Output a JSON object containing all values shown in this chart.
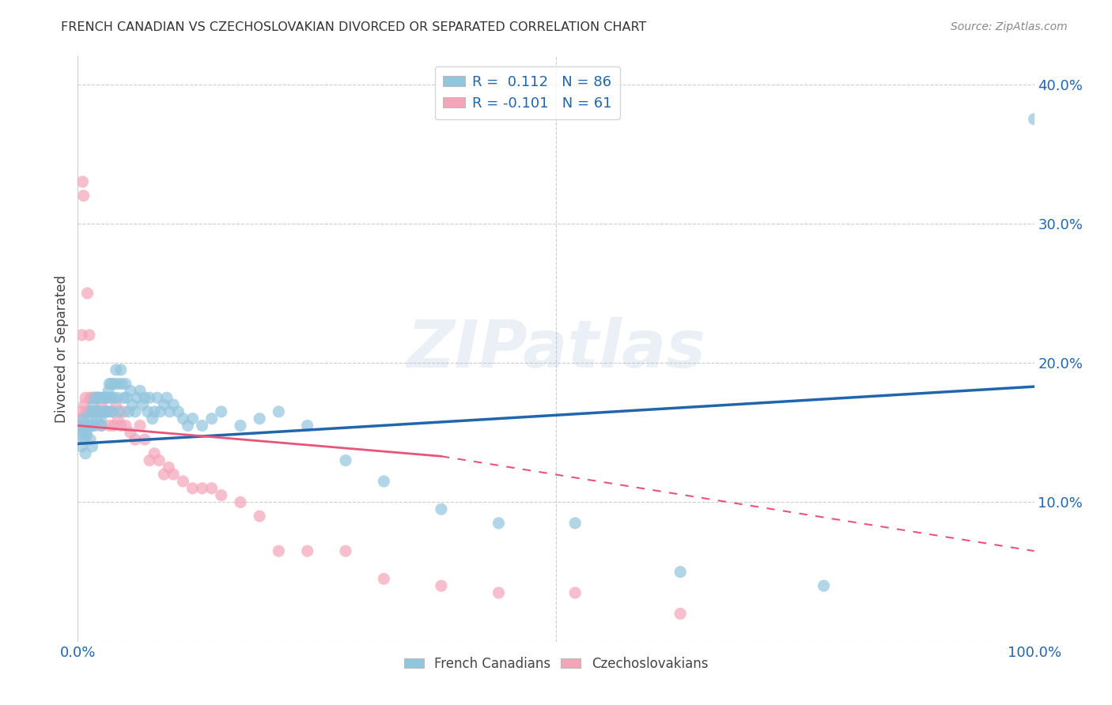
{
  "title": "FRENCH CANADIAN VS CZECHOSLOVAKIAN DIVORCED OR SEPARATED CORRELATION CHART",
  "source": "Source: ZipAtlas.com",
  "ylabel": "Divorced or Separated",
  "xmin": 0.0,
  "xmax": 1.0,
  "ymin": 0.0,
  "ymax": 0.42,
  "xticks": [
    0.0,
    0.25,
    0.5,
    0.75,
    1.0
  ],
  "xticklabels": [
    "0.0%",
    "",
    "",
    "",
    "100.0%"
  ],
  "yticks": [
    0.0,
    0.1,
    0.2,
    0.3,
    0.4
  ],
  "yticklabels": [
    "",
    "10.0%",
    "20.0%",
    "30.0%",
    "40.0%"
  ],
  "legend_entry1": "R =  0.112   N = 86",
  "legend_entry2": "R = -0.101   N = 61",
  "color_blue": "#92c5de",
  "color_pink": "#f4a5b8",
  "line_color_blue": "#2166ac",
  "line_color_pink": "#e8547a",
  "background_color": "#ffffff",
  "grid_color": "#cccccc",
  "watermark": "ZIPatlas",
  "french_x": [
    0.002,
    0.003,
    0.004,
    0.005,
    0.006,
    0.007,
    0.008,
    0.008,
    0.009,
    0.01,
    0.011,
    0.012,
    0.013,
    0.014,
    0.015,
    0.015,
    0.016,
    0.017,
    0.018,
    0.018,
    0.019,
    0.02,
    0.021,
    0.022,
    0.023,
    0.024,
    0.025,
    0.026,
    0.027,
    0.028,
    0.029,
    0.03,
    0.031,
    0.032,
    0.033,
    0.034,
    0.035,
    0.036,
    0.037,
    0.038,
    0.04,
    0.041,
    0.042,
    0.043,
    0.045,
    0.046,
    0.048,
    0.05,
    0.051,
    0.053,
    0.055,
    0.057,
    0.06,
    0.062,
    0.065,
    0.068,
    0.07,
    0.073,
    0.075,
    0.078,
    0.08,
    0.083,
    0.086,
    0.09,
    0.093,
    0.096,
    0.1,
    0.105,
    0.11,
    0.115,
    0.12,
    0.13,
    0.14,
    0.15,
    0.17,
    0.19,
    0.21,
    0.24,
    0.28,
    0.32,
    0.38,
    0.44,
    0.52,
    0.63,
    0.78,
    1.0
  ],
  "french_y": [
    0.155,
    0.148,
    0.14,
    0.15,
    0.16,
    0.145,
    0.135,
    0.155,
    0.148,
    0.152,
    0.16,
    0.155,
    0.145,
    0.165,
    0.155,
    0.14,
    0.17,
    0.165,
    0.155,
    0.175,
    0.165,
    0.16,
    0.175,
    0.165,
    0.175,
    0.16,
    0.155,
    0.175,
    0.165,
    0.175,
    0.165,
    0.175,
    0.165,
    0.18,
    0.185,
    0.175,
    0.185,
    0.165,
    0.175,
    0.185,
    0.195,
    0.175,
    0.185,
    0.165,
    0.195,
    0.185,
    0.175,
    0.185,
    0.175,
    0.165,
    0.18,
    0.17,
    0.165,
    0.175,
    0.18,
    0.17,
    0.175,
    0.165,
    0.175,
    0.16,
    0.165,
    0.175,
    0.165,
    0.17,
    0.175,
    0.165,
    0.17,
    0.165,
    0.16,
    0.155,
    0.16,
    0.155,
    0.16,
    0.165,
    0.155,
    0.16,
    0.165,
    0.155,
    0.13,
    0.115,
    0.095,
    0.085,
    0.085,
    0.05,
    0.04,
    0.375
  ],
  "czech_x": [
    0.001,
    0.002,
    0.003,
    0.004,
    0.005,
    0.006,
    0.007,
    0.008,
    0.009,
    0.01,
    0.011,
    0.012,
    0.013,
    0.014,
    0.015,
    0.016,
    0.017,
    0.018,
    0.019,
    0.02,
    0.021,
    0.022,
    0.023,
    0.024,
    0.025,
    0.027,
    0.029,
    0.031,
    0.033,
    0.035,
    0.038,
    0.04,
    0.042,
    0.045,
    0.048,
    0.05,
    0.055,
    0.06,
    0.065,
    0.07,
    0.075,
    0.08,
    0.085,
    0.09,
    0.095,
    0.1,
    0.11,
    0.12,
    0.13,
    0.14,
    0.15,
    0.17,
    0.19,
    0.21,
    0.24,
    0.28,
    0.32,
    0.38,
    0.44,
    0.52,
    0.63
  ],
  "czech_y": [
    0.155,
    0.16,
    0.165,
    0.22,
    0.33,
    0.32,
    0.17,
    0.175,
    0.165,
    0.25,
    0.165,
    0.22,
    0.175,
    0.165,
    0.175,
    0.165,
    0.175,
    0.165,
    0.175,
    0.175,
    0.165,
    0.175,
    0.165,
    0.155,
    0.17,
    0.165,
    0.175,
    0.165,
    0.155,
    0.165,
    0.155,
    0.17,
    0.16,
    0.155,
    0.165,
    0.155,
    0.15,
    0.145,
    0.155,
    0.145,
    0.13,
    0.135,
    0.13,
    0.12,
    0.125,
    0.12,
    0.115,
    0.11,
    0.11,
    0.11,
    0.105,
    0.1,
    0.09,
    0.065,
    0.065,
    0.065,
    0.045,
    0.04,
    0.035,
    0.035,
    0.02
  ],
  "blue_trend_x0": 0.0,
  "blue_trend_y0": 0.142,
  "blue_trend_x1": 1.0,
  "blue_trend_y1": 0.183,
  "pink_trend_x0": 0.0,
  "pink_trend_y0": 0.155,
  "pink_trend_x1_solid": 0.38,
  "pink_trend_y1_solid": 0.133,
  "pink_trend_x1_dash": 1.0,
  "pink_trend_y1_dash": 0.065
}
